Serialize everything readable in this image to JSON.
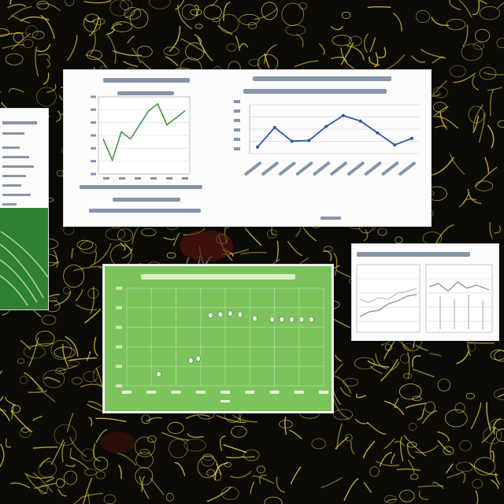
{
  "colors": {
    "background": "#0b0a05",
    "vein": "#c9b53a",
    "green_line": "#3f9a3c",
    "blue_line": "#2f55a8",
    "green_panel": "#7cc35c",
    "panel_edge": "#d8ddd8"
  },
  "chart_data": [
    {
      "type": "line",
      "title": "",
      "xlabel": "",
      "ylabel": "",
      "x": [
        1,
        2,
        3,
        4,
        5,
        6,
        7,
        8,
        9,
        10
      ],
      "series": [
        {
          "values": [
            5,
            2,
            6,
            5,
            7,
            9,
            10,
            7,
            8,
            9
          ]
        }
      ],
      "ylim": [
        0,
        11
      ],
      "grid": true
    },
    {
      "type": "line",
      "title": "",
      "xlabel": "",
      "ylabel": "",
      "categories": [
        "",
        "",
        "",
        "",
        "",
        "",
        "",
        "",
        "",
        ""
      ],
      "series": [
        {
          "values": [
            1.2,
            4.8,
            2.3,
            2.4,
            5.0,
            7.0,
            6.0,
            3.8,
            1.6,
            2.8
          ]
        }
      ],
      "ylim": [
        0,
        9
      ],
      "grid": true
    },
    {
      "type": "scatter",
      "title": "",
      "xlabel": "",
      "ylabel": "",
      "points": [
        [
          1.3,
          1.2
        ],
        [
          2.6,
          2.6
        ],
        [
          2.9,
          2.8
        ],
        [
          3.4,
          7.2
        ],
        [
          3.8,
          7.3
        ],
        [
          4.2,
          7.4
        ],
        [
          4.6,
          7.3
        ],
        [
          5.2,
          6.9
        ],
        [
          5.9,
          6.8
        ],
        [
          6.3,
          6.8
        ],
        [
          6.7,
          6.8
        ],
        [
          7.1,
          6.8
        ],
        [
          7.5,
          6.8
        ]
      ],
      "xlim": [
        0,
        8
      ],
      "ylim": [
        0,
        10
      ],
      "grid": true
    }
  ]
}
